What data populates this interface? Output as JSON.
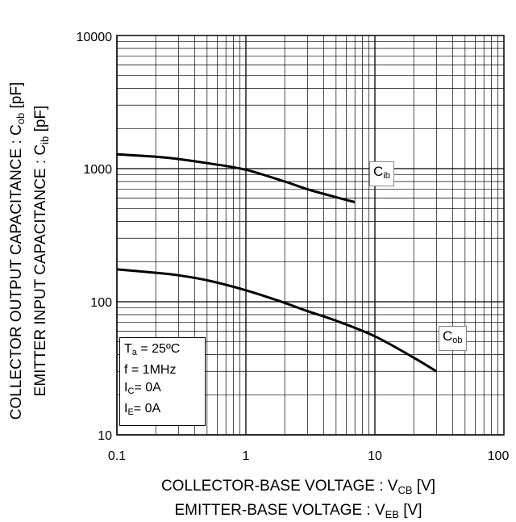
{
  "chart_data": {
    "type": "line",
    "x_scale": "log",
    "y_scale": "log",
    "xlim": [
      0.1,
      100
    ],
    "ylim": [
      10,
      10000
    ],
    "x_ticks": [
      "0.1",
      "1",
      "10",
      "100"
    ],
    "y_ticks": [
      "10",
      "100",
      "1000",
      "10000"
    ],
    "grid": true,
    "xlabel": {
      "line1_main": "COLLECTOR-BASE VOLTAGE : V",
      "line1_sub": "CB",
      "line1_unit": " [V]",
      "line2_main": "EMITTER-BASE VOLTAGE : V",
      "line2_sub": "EB",
      "line2_unit": " [V]"
    },
    "ylabel": {
      "line1_main": "COLLECTOR OUTPUT CAPACITANCE : C",
      "line1_sub": "ob",
      "line1_unit": " [pF]",
      "line2_main": "EMITTER INPUT CAPACITANCE : C",
      "line2_sub": "ib",
      "line2_unit": " [pF]"
    },
    "series": [
      {
        "name": "Cib",
        "label_main": "C",
        "label_sub": "ib",
        "x": [
          0.1,
          0.2,
          0.3,
          0.5,
          1,
          2,
          3,
          5,
          7
        ],
        "y": [
          1280,
          1230,
          1180,
          1100,
          980,
          800,
          700,
          610,
          560
        ]
      },
      {
        "name": "Cob",
        "label_main": "C",
        "label_sub": "ob",
        "x": [
          0.1,
          0.2,
          0.3,
          0.5,
          1,
          2,
          3,
          5,
          10,
          20,
          30
        ],
        "y": [
          175,
          165,
          158,
          145,
          122,
          98,
          85,
          72,
          55,
          38,
          30
        ]
      }
    ],
    "conditions": [
      {
        "main": "T",
        "sub": "a",
        "rest": " = 25ºC"
      },
      {
        "main": "f = 1MHz",
        "sub": "",
        "rest": ""
      },
      {
        "main": "I",
        "sub": "C",
        "rest": "= 0A"
      },
      {
        "main": "I",
        "sub": "E",
        "rest": "= 0A"
      }
    ]
  }
}
